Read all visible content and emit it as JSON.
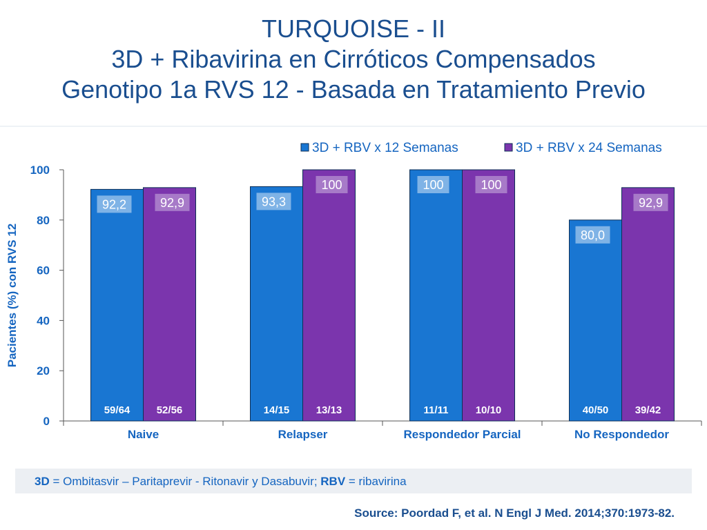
{
  "title": {
    "line1": "TURQUOISE - II",
    "line2": "3D + Ribavirina en Cirróticos Compensados",
    "line3": "Genotipo 1a RVS 12 - Basada en Tratamiento Previo"
  },
  "colors": {
    "title": "#1a4e8f",
    "axis_text": "#1565c0",
    "series1": "#1976d2",
    "series2": "#7b35ad",
    "label_box1": "#7fb3e6",
    "label_box2": "#a77ac8"
  },
  "chart_data": {
    "type": "bar",
    "categories": [
      "Naive",
      "Relapser",
      "Respondedor Parcial",
      "No Respondedor"
    ],
    "series": [
      {
        "name": "3D + RBV x 12 Semanas",
        "values": [
          92.2,
          93.3,
          100,
          80.0
        ],
        "value_labels": [
          "92,2",
          "93,3",
          "100",
          "80,0"
        ],
        "counts": [
          "59/64",
          "14/15",
          "11/11",
          "40/50"
        ]
      },
      {
        "name": "3D + RBV x 24 Semanas",
        "values": [
          92.9,
          100,
          100,
          92.9
        ],
        "value_labels": [
          "92,9",
          "100",
          "100",
          "92,9"
        ],
        "counts": [
          "52/56",
          "13/13",
          "10/10",
          "39/42"
        ]
      }
    ],
    "ylabel": "Pacientes (%) con RVS  12",
    "ylim": [
      0,
      100
    ],
    "yticks": [
      0,
      20,
      40,
      60,
      80,
      100
    ],
    "legend_position": "top-right",
    "grid": false
  },
  "footnote": {
    "abbr1": "3D",
    "def1": " = Ombitasvir – Paritaprevir -  Ritonavir y Dasabuvir; ",
    "abbr2": "RBV",
    "def2": " = ribavirina"
  },
  "source": "Source: Poordad F, et al. N Engl J Med. 2014;370:1973-82."
}
